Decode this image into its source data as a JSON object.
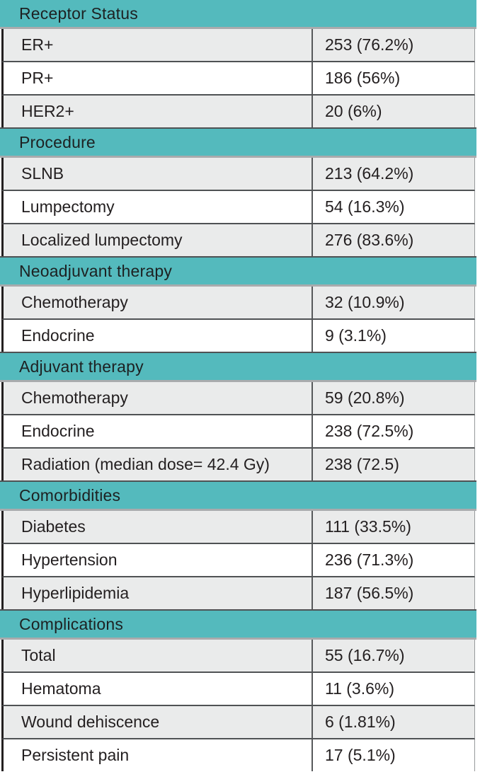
{
  "colors": {
    "accent": "#54babd",
    "row_alt": "#eaebeb",
    "row_plain": "#ffffff",
    "text": "#231f20",
    "border_dark": "#4f5254",
    "border_light": "#a9abad"
  },
  "table": {
    "sections": [
      {
        "header": "Receptor Status",
        "rows": [
          {
            "label": "ER+",
            "value": "253 (76.2%)"
          },
          {
            "label": "PR+",
            "value": "186 (56%)"
          },
          {
            "label": "HER2+",
            "value": "20 (6%)"
          }
        ]
      },
      {
        "header": "Procedure",
        "rows": [
          {
            "label": "SLNB",
            "value": "213 (64.2%)"
          },
          {
            "label": "Lumpectomy",
            "value": "54 (16.3%)"
          },
          {
            "label": "Localized lumpectomy",
            "value": "276 (83.6%)"
          }
        ]
      },
      {
        "header": "Neoadjuvant therapy",
        "rows": [
          {
            "label": "Chemotherapy",
            "value": "32 (10.9%)"
          },
          {
            "label": "Endocrine",
            "value": "9 (3.1%)"
          }
        ]
      },
      {
        "header": "Adjuvant therapy",
        "rows": [
          {
            "label": "Chemotherapy",
            "value": "59 (20.8%)"
          },
          {
            "label": "Endocrine",
            "value": "238 (72.5%)"
          },
          {
            "label": "Radiation (median dose= 42.4 Gy)",
            "value": "238 (72.5)"
          }
        ]
      },
      {
        "header": "Comorbidities",
        "rows": [
          {
            "label": "Diabetes",
            "value": "111 (33.5%)"
          },
          {
            "label": "Hypertension",
            "value": "236 (71.3%)"
          },
          {
            "label": "Hyperlipidemia",
            "value": "187 (56.5%)"
          }
        ]
      },
      {
        "header": "Complications",
        "rows": [
          {
            "label": "Total",
            "value": "55 (16.7%)"
          },
          {
            "label": "Hematoma",
            "value": "11 (3.6%)"
          },
          {
            "label": "Wound dehiscence",
            "value": "6 (1.81%)"
          },
          {
            "label": "Persistent pain",
            "value": "17 (5.1%)"
          }
        ]
      }
    ]
  }
}
